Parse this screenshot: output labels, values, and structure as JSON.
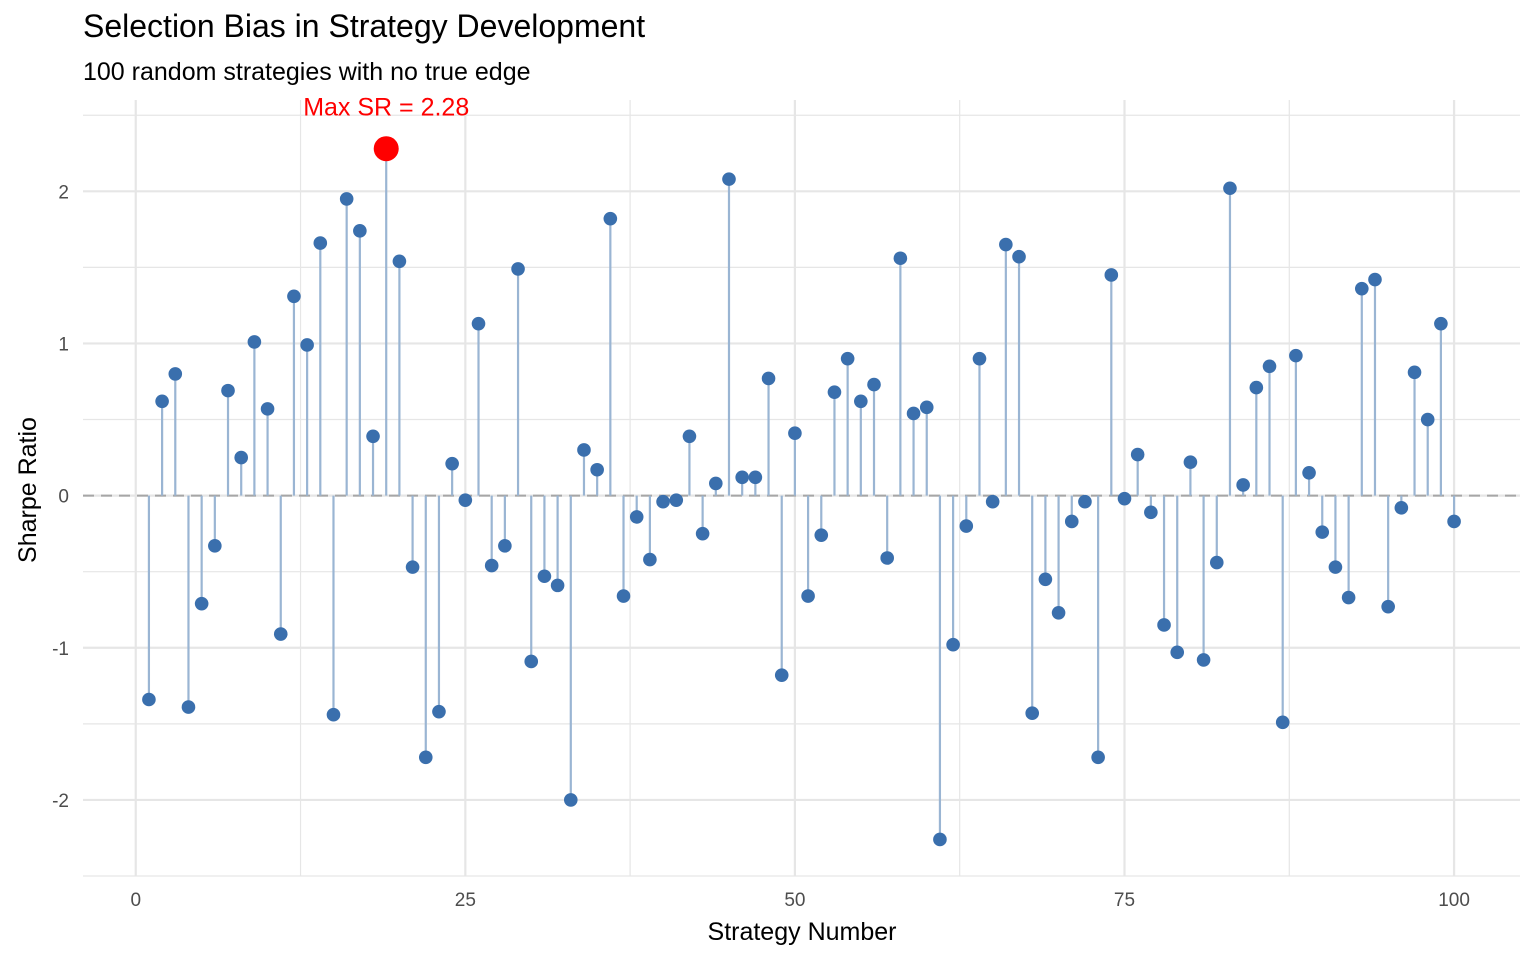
{
  "chart_data": {
    "type": "lollipop",
    "title": "Selection Bias in Strategy Development",
    "subtitle": "100 random strategies with no true edge",
    "xlabel": "Strategy Number",
    "ylabel": "Sharpe Ratio",
    "xlim": [
      -4,
      105
    ],
    "ylim": [
      -2.5,
      2.6
    ],
    "x_ticks": [
      0,
      25,
      50,
      75,
      100
    ],
    "y_ticks": [
      -2,
      -1,
      0,
      1,
      2
    ],
    "grid": true,
    "reference_line": {
      "y": 0,
      "style": "dashed"
    },
    "annotation": {
      "text": "Max SR = 2.28",
      "x": 19,
      "y": 2.28
    },
    "colors": {
      "point": "#3a6fad",
      "stem": "#9ab5d3",
      "highlight": "#ff0000",
      "grid": "#e6e6e6",
      "zero_line": "#a6a6a6"
    },
    "x": [
      1,
      2,
      3,
      4,
      5,
      6,
      7,
      8,
      9,
      10,
      11,
      12,
      13,
      14,
      15,
      16,
      17,
      18,
      19,
      20,
      21,
      22,
      23,
      24,
      25,
      26,
      27,
      28,
      29,
      30,
      31,
      32,
      33,
      34,
      35,
      36,
      37,
      38,
      39,
      40,
      41,
      42,
      43,
      44,
      45,
      46,
      47,
      48,
      49,
      50,
      51,
      52,
      53,
      54,
      55,
      56,
      57,
      58,
      59,
      60,
      61,
      62,
      63,
      64,
      65,
      66,
      67,
      68,
      69,
      70,
      71,
      72,
      73,
      74,
      75,
      76,
      77,
      78,
      79,
      80,
      81,
      82,
      83,
      84,
      85,
      86,
      87,
      88,
      89,
      90,
      91,
      92,
      93,
      94,
      95,
      96,
      97,
      98,
      99,
      100
    ],
    "values": [
      -1.34,
      0.62,
      0.8,
      -1.39,
      -0.71,
      -0.33,
      0.69,
      0.25,
      1.01,
      0.57,
      -0.91,
      1.31,
      0.99,
      1.66,
      -1.44,
      1.95,
      1.74,
      0.39,
      2.28,
      1.54,
      -0.47,
      -1.72,
      -1.42,
      0.21,
      -0.03,
      1.13,
      -0.46,
      -0.33,
      1.49,
      -1.09,
      -0.53,
      -0.59,
      -2.0,
      0.3,
      0.17,
      1.82,
      -0.66,
      -0.14,
      -0.42,
      -0.04,
      -0.03,
      0.39,
      -0.25,
      0.08,
      2.08,
      0.12,
      0.12,
      0.77,
      -1.18,
      0.41,
      -0.66,
      -0.26,
      0.68,
      0.9,
      0.62,
      0.73,
      -0.41,
      1.56,
      0.54,
      0.58,
      -2.26,
      -0.98,
      -0.2,
      0.9,
      -0.04,
      1.65,
      1.57,
      -1.43,
      -0.55,
      -0.77,
      -0.17,
      -0.04,
      -1.72,
      1.45,
      -0.02,
      0.27,
      -0.11,
      -0.85,
      -1.03,
      0.22,
      -1.08,
      -0.44,
      2.02,
      0.07,
      0.71,
      0.85,
      -1.49,
      0.92,
      0.15,
      -0.24,
      -0.47,
      -0.67,
      1.36,
      1.42,
      -0.73,
      -0.08,
      0.81,
      0.5,
      1.13,
      -0.17
    ]
  }
}
